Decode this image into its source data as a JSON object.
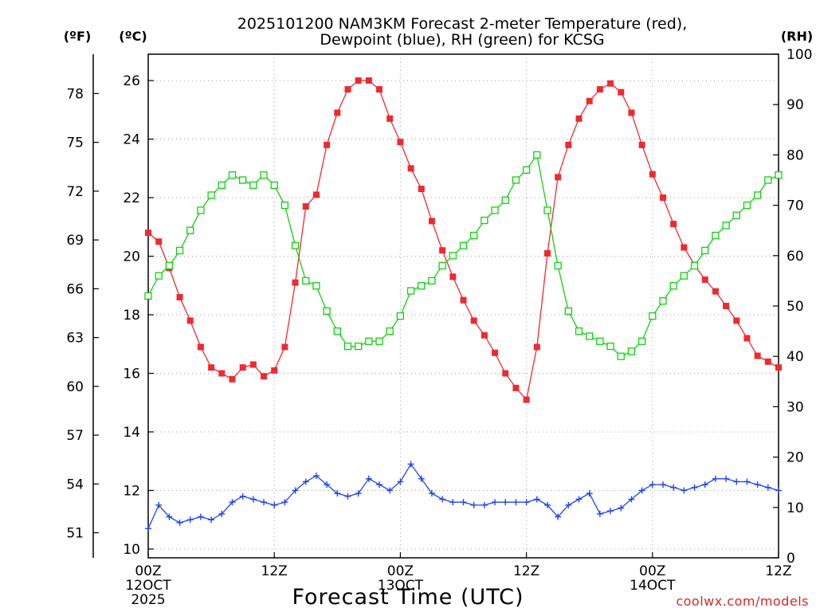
{
  "chart_data": {
    "type": "line",
    "title_line1": "2025101200 NAM3KM Forecast 2-meter Temperature (red),",
    "title_line2": "Dewpoint (blue), RH (green) for KCSG",
    "xlabel": "Forecast Time (UTC)",
    "credit": "coolwx.com/models",
    "units": {
      "fahrenheit": "(ºF)",
      "celsius": "(ºC)",
      "rh": "(RH)"
    },
    "x_range_hours": [
      0,
      60
    ],
    "x_ticks": [
      {
        "hour": 0,
        "lines": [
          "00Z",
          "12OCT",
          "2025"
        ]
      },
      {
        "hour": 12,
        "lines": [
          "12Z"
        ]
      },
      {
        "hour": 24,
        "lines": [
          "00Z",
          "13OCT"
        ]
      },
      {
        "hour": 36,
        "lines": [
          "12Z"
        ]
      },
      {
        "hour": 48,
        "lines": [
          "00Z",
          "14OCT"
        ]
      },
      {
        "hour": 60,
        "lines": [
          "12Z"
        ]
      }
    ],
    "celsius_axis": {
      "range": [
        9.7,
        26.9
      ],
      "ticks": [
        10,
        12,
        14,
        16,
        18,
        20,
        22,
        24,
        26
      ]
    },
    "fahrenheit_ticks": [
      51,
      54,
      57,
      60,
      63,
      66,
      69,
      72,
      75,
      78
    ],
    "rh_axis": {
      "range": [
        0,
        100
      ],
      "ticks": [
        0,
        10,
        20,
        30,
        40,
        50,
        60,
        70,
        80,
        90,
        100
      ]
    },
    "colors": {
      "temperature": "#ee2a30",
      "dewpoint": "#2244ee",
      "rh": "#10d010",
      "grid": "#9a9a9a"
    },
    "series": [
      {
        "name": "Temperature (°C)",
        "marker": "filled-square",
        "x": [
          0,
          1,
          2,
          3,
          4,
          5,
          6,
          7,
          8,
          9,
          10,
          11,
          12,
          13,
          14,
          15,
          16,
          17,
          18,
          19,
          20,
          21,
          22,
          23,
          24,
          25,
          26,
          27,
          28,
          29,
          30,
          31,
          32,
          33,
          34,
          35,
          36,
          37,
          38,
          39,
          40,
          41,
          42,
          43,
          44,
          45,
          46,
          47,
          48,
          49,
          50,
          51,
          52,
          53,
          54,
          55,
          56,
          57,
          58,
          59,
          60
        ],
        "values": [
          20.8,
          20.5,
          19.6,
          18.6,
          17.8,
          16.9,
          16.2,
          16.0,
          15.8,
          16.2,
          16.3,
          15.9,
          16.1,
          16.9,
          19.1,
          21.7,
          22.1,
          23.8,
          24.9,
          25.7,
          26.0,
          26.0,
          25.7,
          24.7,
          23.9,
          23.0,
          22.3,
          21.2,
          20.2,
          19.3,
          18.5,
          17.8,
          17.3,
          16.7,
          16.0,
          15.5,
          15.1,
          16.9,
          20.1,
          22.7,
          23.8,
          24.7,
          25.3,
          25.7,
          25.9,
          25.6,
          24.9,
          23.8,
          22.8,
          22.0,
          21.1,
          20.3,
          19.7,
          19.2,
          18.8,
          18.3,
          17.8,
          17.2,
          16.6,
          16.4,
          16.2
        ]
      },
      {
        "name": "Dewpoint (°C)",
        "marker": "plus",
        "x": [
          0,
          1,
          2,
          3,
          4,
          5,
          6,
          7,
          8,
          9,
          10,
          11,
          12,
          13,
          14,
          15,
          16,
          17,
          18,
          19,
          20,
          21,
          22,
          23,
          24,
          25,
          26,
          27,
          28,
          29,
          30,
          31,
          32,
          33,
          34,
          35,
          36,
          37,
          38,
          39,
          40,
          41,
          42,
          43,
          44,
          45,
          46,
          47,
          48,
          49,
          50,
          51,
          52,
          53,
          54,
          55,
          56,
          57,
          58,
          59,
          60
        ],
        "values": [
          10.7,
          11.5,
          11.1,
          10.9,
          11.0,
          11.1,
          11.0,
          11.2,
          11.6,
          11.8,
          11.7,
          11.6,
          11.5,
          11.6,
          12.0,
          12.3,
          12.5,
          12.2,
          11.9,
          11.8,
          11.9,
          12.4,
          12.2,
          12.0,
          12.3,
          12.9,
          12.4,
          11.9,
          11.7,
          11.6,
          11.6,
          11.5,
          11.5,
          11.6,
          11.6,
          11.6,
          11.6,
          11.7,
          11.5,
          11.1,
          11.5,
          11.7,
          11.9,
          11.2,
          11.3,
          11.4,
          11.7,
          12.0,
          12.2,
          12.2,
          12.1,
          12.0,
          12.1,
          12.2,
          12.4,
          12.4,
          12.3,
          12.3,
          12.2,
          12.1,
          12.0
        ]
      },
      {
        "name": "RH (%)",
        "marker": "open-square",
        "x": [
          0,
          1,
          2,
          3,
          4,
          5,
          6,
          7,
          8,
          9,
          10,
          11,
          12,
          13,
          14,
          15,
          16,
          17,
          18,
          19,
          20,
          21,
          22,
          23,
          24,
          25,
          26,
          27,
          28,
          29,
          30,
          31,
          32,
          33,
          34,
          35,
          36,
          37,
          38,
          39,
          40,
          41,
          42,
          43,
          44,
          45,
          46,
          47,
          48,
          49,
          50,
          51,
          52,
          53,
          54,
          55,
          56,
          57,
          58,
          59,
          60
        ],
        "values": [
          52,
          56,
          58,
          61,
          65,
          69,
          72,
          74,
          76,
          75,
          74,
          76,
          74,
          70,
          62,
          55,
          54,
          49,
          45,
          42,
          42,
          43,
          43,
          45,
          48,
          53,
          54,
          55,
          58,
          60,
          62,
          64,
          67,
          69,
          71,
          75,
          77,
          80,
          69,
          58,
          49,
          45,
          44,
          43,
          42,
          40,
          41,
          43,
          48,
          51,
          54,
          56,
          58,
          61,
          64,
          66,
          68,
          70,
          72,
          75,
          76
        ]
      }
    ]
  }
}
